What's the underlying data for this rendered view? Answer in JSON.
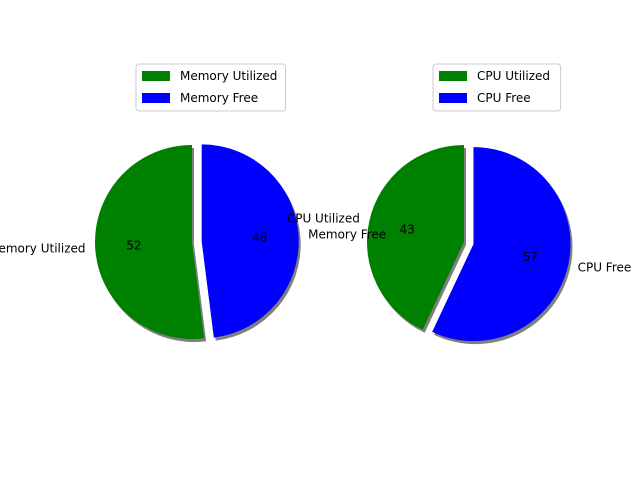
{
  "chart_data": [
    {
      "type": "pie",
      "labels": [
        "Memory Utilized",
        "Memory Free"
      ],
      "values": [
        52,
        48
      ],
      "value_labels": [
        "52",
        "48"
      ],
      "colors": [
        "#008000",
        "#0000ff"
      ],
      "explode": [
        0,
        0.1
      ],
      "shadow": true,
      "legend_placement": "top-center"
    },
    {
      "type": "pie",
      "labels": [
        "CPU Utilized",
        "CPU Free"
      ],
      "values": [
        43,
        57
      ],
      "value_labels": [
        "43",
        "57"
      ],
      "colors": [
        "#008000",
        "#0000ff"
      ],
      "explode": [
        0,
        0.1
      ],
      "shadow": true,
      "legend_placement": "top-center"
    }
  ]
}
